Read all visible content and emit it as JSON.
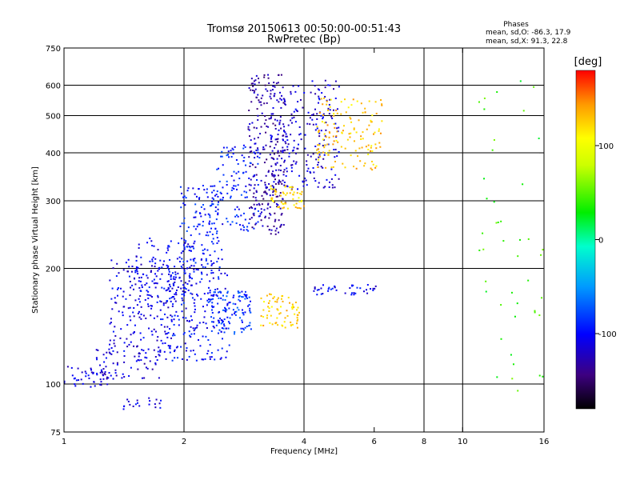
{
  "header": {
    "title_line1": "Tromsø 20150613 00:50:00-00:51:43",
    "title_line2": "RwPretec (Bp)"
  },
  "stats": {
    "heading": "Phases",
    "line_o": "mean, sd,O: -86.3, 17.9",
    "line_x": "mean, sd,X:  91.3, 22.8"
  },
  "colorbar": {
    "unit": "[deg]",
    "ticks": [
      {
        "value": 100,
        "label": "100"
      },
      {
        "value": 0,
        "label": "0"
      },
      {
        "value": -100,
        "label": "-100"
      }
    ],
    "range": [
      -180,
      180
    ]
  },
  "colors": {
    "axis": "#000000",
    "background": "#ffffff"
  },
  "chart_data": {
    "type": "scatter",
    "title": "Tromsø 20150613 00:50:00-00:51:43",
    "subtitle": "RwPretec (Bp)",
    "xlabel": "Frequency [MHz]",
    "ylabel": "Stationary phase Virtual Height [km]",
    "xscale": "log",
    "yscale": "log",
    "xlim": [
      1,
      16
    ],
    "ylim": [
      75,
      750
    ],
    "x_ticks": [
      {
        "value": 1,
        "label": "1"
      },
      {
        "value": 2,
        "label": "2"
      },
      {
        "value": 4,
        "label": "4"
      },
      {
        "value": 6,
        "label": "6"
      },
      {
        "value": 8,
        "label": "8"
      },
      {
        "value": 10,
        "label": "10"
      },
      {
        "value": 16,
        "label": "16"
      }
    ],
    "y_ticks": [
      {
        "value": 75,
        "label": "75"
      },
      {
        "value": 100,
        "label": "100"
      },
      {
        "value": 200,
        "label": "200"
      },
      {
        "value": 300,
        "label": "300"
      },
      {
        "value": 400,
        "label": "400"
      },
      {
        "value": 500,
        "label": "500"
      },
      {
        "value": 600,
        "label": "600"
      },
      {
        "value": 750,
        "label": "750"
      }
    ],
    "grid_x": [
      2,
      4,
      8,
      10
    ],
    "grid_y": [
      100,
      200,
      300,
      400,
      500,
      600
    ],
    "colorbar_label": "[deg]",
    "color_dimension": "phase (deg)",
    "clusters": [
      {
        "x": [
          1.0,
          1.3
        ],
        "y": [
          97,
          112
        ],
        "phase": -112,
        "density": 45
      },
      {
        "x": [
          1.15,
          1.75
        ],
        "y": [
          103,
          128
        ],
        "phase": -115,
        "density": 70
      },
      {
        "x": [
          1.3,
          1.9
        ],
        "y": [
          120,
          215
        ],
        "phase": -108,
        "density": 170
      },
      {
        "x": [
          1.5,
          2.15
        ],
        "y": [
          145,
          240
        ],
        "phase": -105,
        "density": 130
      },
      {
        "x": [
          1.8,
          2.6
        ],
        "y": [
          115,
          200
        ],
        "phase": -100,
        "density": 190
      },
      {
        "x": [
          1.95,
          2.5
        ],
        "y": [
          200,
          330
        ],
        "phase": -95,
        "density": 150
      },
      {
        "x": [
          2.3,
          2.95
        ],
        "y": [
          135,
          175
        ],
        "phase": -85,
        "density": 110
      },
      {
        "x": [
          2.4,
          3.1
        ],
        "y": [
          250,
          420
        ],
        "phase": -90,
        "density": 110
      },
      {
        "x": [
          2.9,
          3.6
        ],
        "y": [
          245,
          640
        ],
        "phase": -130,
        "density": 260
      },
      {
        "x": [
          3.3,
          4.9
        ],
        "y": [
          320,
          620
        ],
        "phase": -115,
        "density": 230
      },
      {
        "x": [
          3.1,
          3.9
        ],
        "y": [
          140,
          172
        ],
        "phase": 125,
        "density": 70
      },
      {
        "x": [
          3.3,
          4.0
        ],
        "y": [
          285,
          330
        ],
        "phase": 122,
        "density": 55
      },
      {
        "x": [
          4.3,
          6.3
        ],
        "y": [
          360,
          560
        ],
        "phase": 128,
        "density": 140
      },
      {
        "x": [
          4.2,
          6.1
        ],
        "y": [
          170,
          182
        ],
        "phase": -105,
        "density": 40
      },
      {
        "x": [
          1.4,
          1.75
        ],
        "y": [
          86,
          92
        ],
        "phase": -110,
        "density": 20
      },
      {
        "x": [
          11.0,
          16.0
        ],
        "y": [
          95,
          620
        ],
        "phase": 40,
        "density": 45
      }
    ]
  }
}
